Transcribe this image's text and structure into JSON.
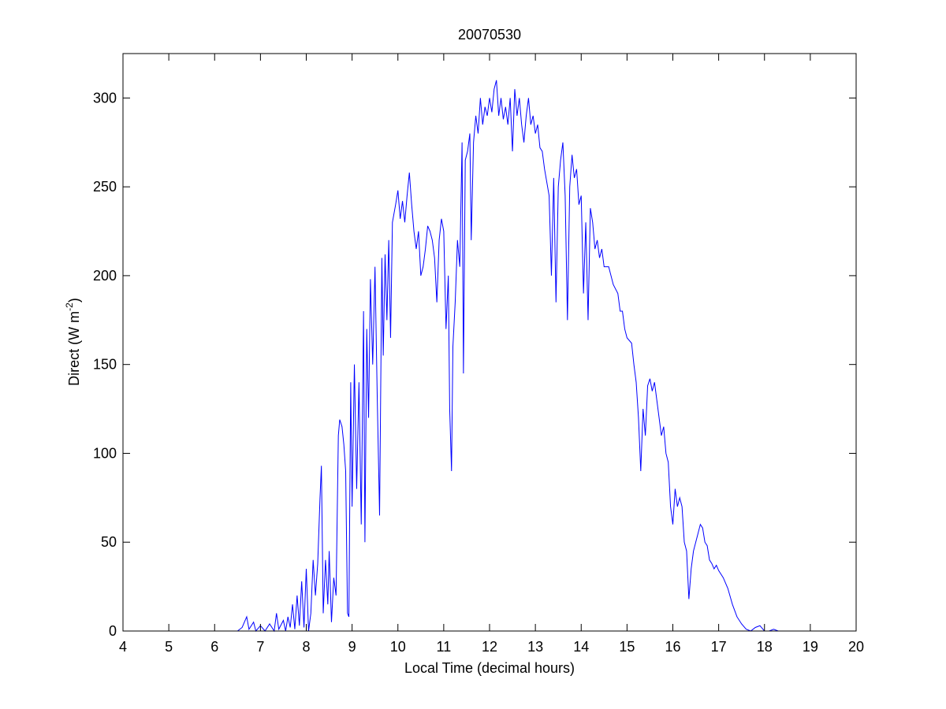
{
  "chart_data": {
    "type": "line",
    "title": "20070530",
    "xlabel": "Local Time (decimal hours)",
    "ylabel_main": "Direct (W m",
    "ylabel_sup": "-2",
    "ylabel_close": ")",
    "xlim": [
      4,
      20
    ],
    "xticks": [
      4,
      5,
      6,
      7,
      8,
      9,
      10,
      11,
      12,
      13,
      14,
      15,
      16,
      17,
      18,
      19,
      20
    ],
    "ylim": [
      0,
      325
    ],
    "yticks": [
      0,
      50,
      100,
      150,
      200,
      250,
      300
    ],
    "grid": false,
    "series": [
      {
        "name": "Direct",
        "color": "#0000ff",
        "x": [
          5.2,
          6.0,
          6.5,
          6.6,
          6.7,
          6.75,
          6.85,
          6.9,
          7.0,
          7.1,
          7.2,
          7.3,
          7.35,
          7.4,
          7.5,
          7.55,
          7.6,
          7.65,
          7.7,
          7.75,
          7.8,
          7.85,
          7.9,
          7.95,
          8.0,
          8.05,
          8.1,
          8.15,
          8.2,
          8.25,
          8.3,
          8.33,
          8.37,
          8.42,
          8.47,
          8.5,
          8.55,
          8.6,
          8.65,
          8.7,
          8.73,
          8.78,
          8.82,
          8.86,
          8.9,
          8.93,
          8.97,
          9.0,
          9.05,
          9.1,
          9.15,
          9.2,
          9.25,
          9.28,
          9.32,
          9.36,
          9.4,
          9.45,
          9.5,
          9.55,
          9.6,
          9.65,
          9.68,
          9.72,
          9.76,
          9.8,
          9.84,
          9.88,
          9.95,
          10.0,
          10.05,
          10.1,
          10.15,
          10.2,
          10.25,
          10.3,
          10.35,
          10.4,
          10.45,
          10.5,
          10.55,
          10.6,
          10.65,
          10.7,
          10.75,
          10.8,
          10.85,
          10.9,
          10.95,
          11.0,
          11.05,
          11.1,
          11.13,
          11.17,
          11.2,
          11.25,
          11.3,
          11.35,
          11.4,
          11.43,
          11.47,
          11.52,
          11.57,
          11.6,
          11.65,
          11.7,
          11.75,
          11.8,
          11.85,
          11.9,
          11.95,
          12.0,
          12.05,
          12.1,
          12.15,
          12.2,
          12.25,
          12.3,
          12.35,
          12.4,
          12.45,
          12.5,
          12.55,
          12.6,
          12.65,
          12.7,
          12.75,
          12.8,
          12.85,
          12.9,
          12.95,
          13.0,
          13.05,
          13.1,
          13.15,
          13.2,
          13.3,
          13.35,
          13.4,
          13.45,
          13.5,
          13.55,
          13.6,
          13.65,
          13.7,
          13.75,
          13.8,
          13.85,
          13.9,
          13.95,
          14.0,
          14.05,
          14.1,
          14.15,
          14.2,
          14.25,
          14.3,
          14.35,
          14.4,
          14.45,
          14.5,
          14.6,
          14.7,
          14.8,
          14.85,
          14.9,
          14.95,
          15.0,
          15.1,
          15.15,
          15.2,
          15.25,
          15.3,
          15.35,
          15.4,
          15.45,
          15.5,
          15.55,
          15.6,
          15.65,
          15.7,
          15.75,
          15.8,
          15.85,
          15.9,
          15.95,
          16.0,
          16.05,
          16.1,
          16.15,
          16.2,
          16.25,
          16.3,
          16.35,
          16.4,
          16.45,
          16.5,
          16.55,
          16.6,
          16.65,
          16.7,
          16.75,
          16.8,
          16.85,
          16.9,
          16.95,
          17.0,
          17.1,
          17.2,
          17.3,
          17.4,
          17.5,
          17.6,
          17.7,
          17.8,
          17.9,
          18.0,
          18.1,
          18.2,
          18.3
        ],
        "values": [
          0,
          0,
          0,
          2,
          8,
          1,
          5,
          0,
          3,
          0,
          4,
          0,
          10,
          1,
          6,
          0,
          8,
          2,
          15,
          1,
          20,
          3,
          28,
          2,
          35,
          0,
          10,
          40,
          20,
          38,
          75,
          93,
          10,
          40,
          15,
          45,
          5,
          30,
          20,
          110,
          119,
          115,
          105,
          90,
          10,
          8,
          140,
          70,
          150,
          80,
          140,
          60,
          180,
          50,
          170,
          120,
          198,
          150,
          205,
          130,
          65,
          210,
          155,
          212,
          175,
          220,
          165,
          230,
          240,
          248,
          232,
          242,
          230,
          245,
          258,
          240,
          225,
          215,
          225,
          200,
          205,
          215,
          228,
          225,
          220,
          210,
          185,
          220,
          232,
          225,
          170,
          200,
          125,
          90,
          160,
          185,
          220,
          205,
          275,
          145,
          265,
          270,
          280,
          220,
          275,
          290,
          280,
          300,
          285,
          295,
          290,
          300,
          292,
          305,
          310,
          290,
          300,
          288,
          295,
          285,
          300,
          270,
          305,
          290,
          300,
          285,
          275,
          290,
          300,
          285,
          290,
          280,
          285,
          272,
          270,
          260,
          245,
          200,
          255,
          185,
          250,
          265,
          275,
          245,
          175,
          250,
          268,
          255,
          260,
          240,
          245,
          190,
          230,
          175,
          238,
          230,
          215,
          220,
          210,
          215,
          205,
          205,
          195,
          190,
          180,
          180,
          170,
          165,
          162,
          150,
          140,
          120,
          90,
          125,
          110,
          138,
          142,
          135,
          140,
          130,
          120,
          110,
          115,
          100,
          95,
          70,
          60,
          80,
          70,
          75,
          70,
          50,
          45,
          18,
          35,
          45,
          50,
          55,
          60,
          58,
          50,
          48,
          40,
          38,
          35,
          37,
          34,
          30,
          24,
          15,
          8,
          4,
          1,
          0,
          2,
          3,
          0,
          0,
          1,
          0
        ]
      }
    ]
  }
}
